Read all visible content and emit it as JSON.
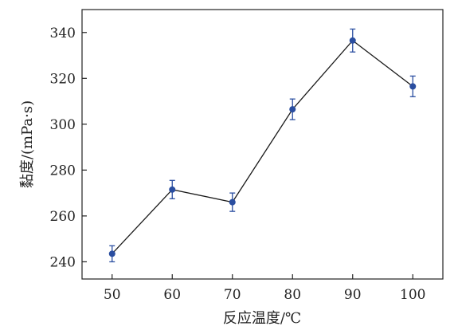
{
  "chart_data": {
    "type": "line",
    "xlabel": "反应温度/℃",
    "ylabel": "黏度/(mPa·s)",
    "x": [
      50,
      60,
      70,
      80,
      90,
      100
    ],
    "x_ticks": [
      "50",
      "60",
      "70",
      "80",
      "90",
      "100"
    ],
    "y_ticks": [
      "240",
      "260",
      "280",
      "300",
      "320",
      "340"
    ],
    "xlim": [
      45,
      105
    ],
    "ylim": [
      232.5,
      350
    ],
    "grid": false,
    "series": [
      {
        "values": [
          243.5,
          271.5,
          266,
          306.5,
          336.5,
          316.5
        ],
        "error": [
          3.5,
          4,
          4,
          4.5,
          5,
          4.5
        ],
        "color": "#2a4ea0",
        "line_color": "#1a1a1a"
      }
    ]
  }
}
